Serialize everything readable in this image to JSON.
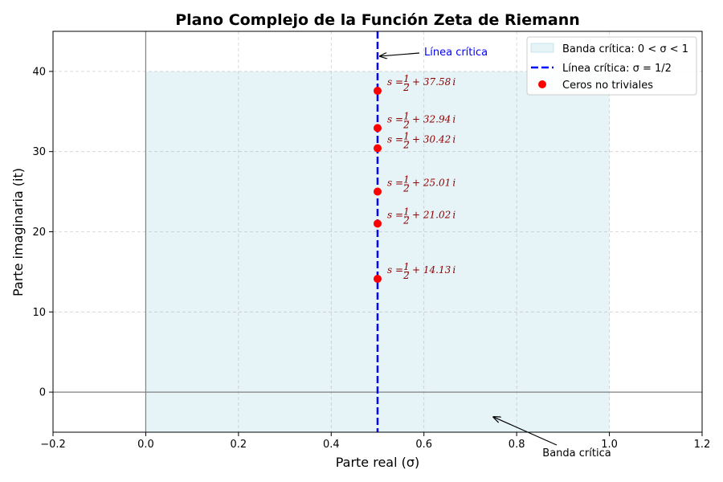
{
  "chart_data": {
    "type": "scatter",
    "title": "Plano Complejo de la Función Zeta de Riemann",
    "xlabel": "Parte real (σ)",
    "ylabel": "Parte imaginaria (it)",
    "xlim": [
      -0.2,
      1.2
    ],
    "ylim": [
      -5,
      45
    ],
    "x_ticks": [
      -0.2,
      0.0,
      0.2,
      0.4,
      0.6,
      0.8,
      1.0,
      1.2
    ],
    "x_tick_labels": [
      "−0.2",
      "0.0",
      "0.2",
      "0.4",
      "0.6",
      "0.8",
      "1.0",
      "1.2"
    ],
    "y_ticks": [
      0,
      10,
      20,
      30,
      40
    ],
    "y_tick_labels": [
      "0",
      "10",
      "20",
      "30",
      "40"
    ],
    "grid": true,
    "legend_placement": "upper-right",
    "critical_strip": {
      "legend_label": "Banda crítica: 0 < σ < 1",
      "x_range": [
        0,
        1
      ],
      "y_range": [
        -5,
        40
      ],
      "color": "#add8e6"
    },
    "critical_line": {
      "legend_label": "Línea crítica: σ = 1/2",
      "x": 0.5,
      "color": "#0000ff"
    },
    "series": [
      {
        "name": "Ceros no triviales",
        "color": "#ff0000",
        "points": [
          {
            "x": 0.5,
            "y": 14.13,
            "label": "14.13"
          },
          {
            "x": 0.5,
            "y": 21.02,
            "label": "21.02"
          },
          {
            "x": 0.5,
            "y": 25.01,
            "label": "25.01"
          },
          {
            "x": 0.5,
            "y": 30.42,
            "label": "30.42"
          },
          {
            "x": 0.5,
            "y": 32.94,
            "label": "32.94"
          },
          {
            "x": 0.5,
            "y": 37.58,
            "label": "37.58"
          }
        ]
      }
    ],
    "annotations": [
      {
        "text": "Línea crítica",
        "point": [
          0.5,
          42
        ],
        "color": "#0000ff"
      },
      {
        "text": "Banda crítica",
        "point": [
          0.75,
          -3
        ],
        "color": "#000000"
      }
    ]
  }
}
